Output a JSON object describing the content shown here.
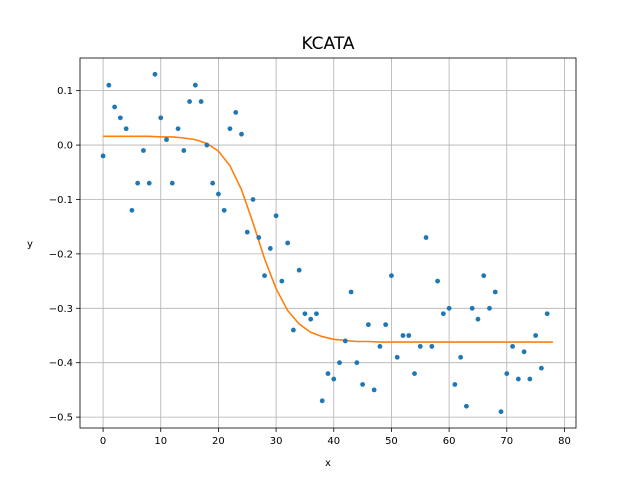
{
  "chart_data": {
    "type": "scatter",
    "title": "KCATA",
    "xlabel": "x",
    "ylabel": "y",
    "xlim": [
      -4,
      82
    ],
    "ylim": [
      -0.52,
      0.16
    ],
    "xticks": [
      0,
      10,
      20,
      30,
      40,
      50,
      60,
      70,
      80
    ],
    "yticks": [
      0.1,
      0.0,
      -0.1,
      -0.2,
      -0.3,
      -0.4,
      -0.5
    ],
    "xtick_labels": [
      "0",
      "10",
      "20",
      "30",
      "40",
      "50",
      "60",
      "70",
      "80"
    ],
    "ytick_labels": [
      "0.1",
      "0.0",
      "−0.1",
      "−0.2",
      "−0.3",
      "−0.4",
      "−0.5"
    ],
    "grid": true,
    "colors": {
      "points": "#1f77b4",
      "fit": "#ff7f0e"
    },
    "series": [
      {
        "kind": "points",
        "x": [
          0,
          1,
          2,
          3,
          4,
          5,
          6,
          7,
          8,
          9,
          10,
          11,
          12,
          13,
          14,
          15,
          16,
          17,
          18,
          19,
          20,
          21,
          22,
          23,
          24,
          25,
          26,
          27,
          28,
          29,
          30,
          31,
          32,
          33,
          34,
          35,
          36,
          37,
          38,
          39,
          40,
          41,
          42,
          43,
          44,
          45,
          46,
          47,
          48,
          49,
          50,
          51,
          52,
          53,
          54,
          55,
          56,
          57,
          58,
          59,
          60,
          61,
          62,
          63,
          64,
          65,
          66,
          67,
          68,
          69,
          70,
          71,
          72,
          73,
          74,
          75,
          76,
          77
        ],
        "y": [
          -0.02,
          0.11,
          0.07,
          0.05,
          0.03,
          -0.12,
          -0.07,
          -0.01,
          -0.07,
          0.13,
          0.05,
          0.01,
          -0.07,
          0.03,
          -0.01,
          0.08,
          0.11,
          0.08,
          0.0,
          -0.07,
          -0.09,
          -0.12,
          0.03,
          0.06,
          0.02,
          -0.16,
          -0.1,
          -0.17,
          -0.24,
          -0.19,
          -0.13,
          -0.25,
          -0.18,
          -0.34,
          -0.23,
          -0.31,
          -0.32,
          -0.31,
          -0.47,
          -0.42,
          -0.43,
          -0.4,
          -0.36,
          -0.27,
          -0.4,
          -0.44,
          -0.33,
          -0.45,
          -0.37,
          -0.33,
          -0.24,
          -0.39,
          -0.35,
          -0.35,
          -0.42,
          -0.37,
          -0.17,
          -0.37,
          -0.25,
          -0.31,
          -0.3,
          -0.44,
          -0.39,
          -0.48,
          -0.3,
          -0.32,
          -0.24,
          -0.3,
          -0.27,
          -0.49,
          -0.42,
          -0.37,
          -0.43,
          -0.38,
          -0.43,
          -0.35,
          -0.41,
          -0.31
        ]
      },
      {
        "kind": "line",
        "x": [
          0,
          2,
          4,
          6,
          8,
          10,
          12,
          14,
          16,
          18,
          20,
          22,
          24,
          26,
          28,
          30,
          32,
          34,
          36,
          38,
          40,
          42,
          44,
          46,
          48,
          50,
          52,
          54,
          56,
          58,
          60,
          62,
          64,
          66,
          68,
          70,
          72,
          74,
          76,
          78
        ],
        "y": [
          0.016,
          0.016,
          0.016,
          0.016,
          0.016,
          0.015,
          0.015,
          0.013,
          0.01,
          0.003,
          -0.011,
          -0.038,
          -0.082,
          -0.143,
          -0.209,
          -0.264,
          -0.304,
          -0.329,
          -0.344,
          -0.352,
          -0.357,
          -0.359,
          -0.361,
          -0.361,
          -0.362,
          -0.362,
          -0.362,
          -0.362,
          -0.362,
          -0.362,
          -0.362,
          -0.362,
          -0.362,
          -0.362,
          -0.362,
          -0.362,
          -0.362,
          -0.362,
          -0.362,
          -0.362
        ]
      }
    ]
  }
}
